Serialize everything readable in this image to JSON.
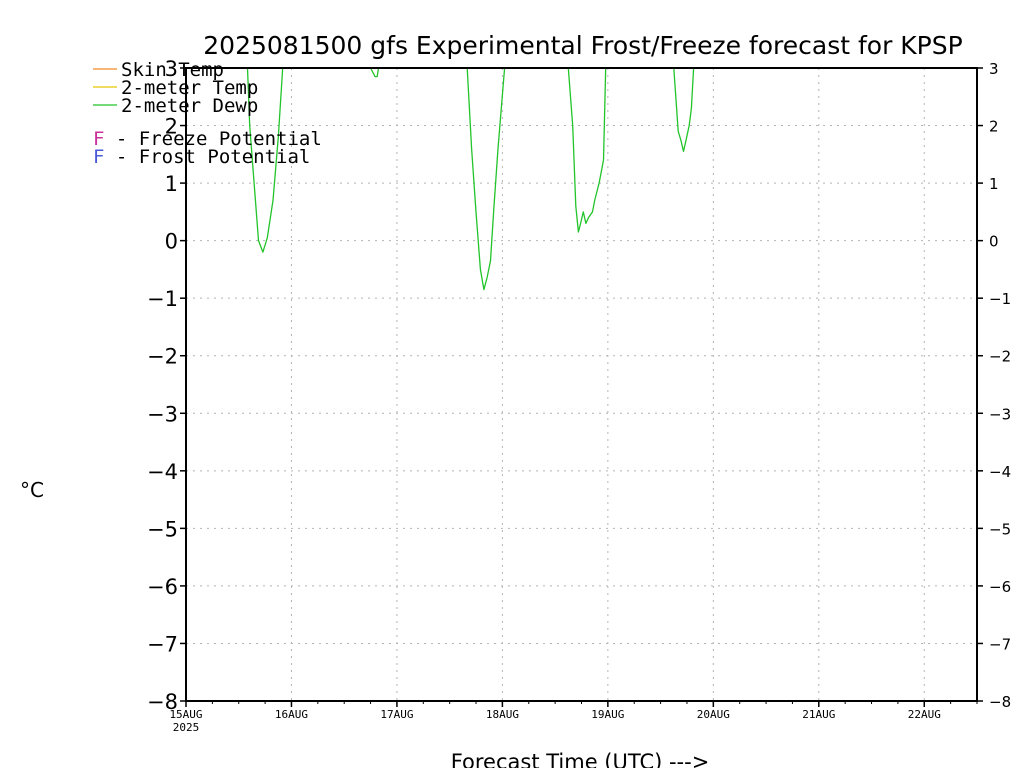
{
  "chart_data": {
    "type": "line",
    "title": "2025081500 gfs Experimental Frost/Freeze forecast for KPSP",
    "xlabel": "Forecast Time (UTC) --->",
    "ylabel_unit": "°C",
    "ylim": [
      -8,
      3
    ],
    "xlim_hours": [
      0,
      180
    ],
    "y_ticks": [
      "3",
      "2",
      "1",
      "0",
      "−1",
      "−2",
      "−3",
      "−4",
      "−5",
      "−6",
      "−7",
      "−8"
    ],
    "x_ticks": [
      {
        "label": "15AUG",
        "sub": "2025",
        "hour": 0
      },
      {
        "label": "16AUG",
        "sub": "",
        "hour": 24
      },
      {
        "label": "17AUG",
        "sub": "",
        "hour": 48
      },
      {
        "label": "18AUG",
        "sub": "",
        "hour": 72
      },
      {
        "label": "19AUG",
        "sub": "",
        "hour": 96
      },
      {
        "label": "20AUG",
        "sub": "",
        "hour": 120
      },
      {
        "label": "21AUG",
        "sub": "",
        "hour": 144
      },
      {
        "label": "22AUG",
        "sub": "",
        "hour": 168
      }
    ],
    "grid": true,
    "legend": {
      "placement": "top-left",
      "series_entries": [
        {
          "name": "Skin Temp",
          "color": "#f08a24"
        },
        {
          "name": "2-meter Temp",
          "color": "#e6c800"
        },
        {
          "name": "2-meter Dewp",
          "color": "#22c42a"
        }
      ],
      "potential_entries": [
        {
          "letter": "F",
          "text": " - Freeze Potential",
          "color": "#c8309a"
        },
        {
          "letter": "F",
          "text": " - Frost Potential",
          "color": "#4a5ad8"
        }
      ]
    },
    "series": [
      {
        "name": "2-meter Dewp",
        "color": "#22c42a",
        "segments": [
          [
            [
              14,
              3.0
            ],
            [
              14.5,
              2.0
            ],
            [
              15.5,
              1.0
            ],
            [
              16.5,
              0.0
            ],
            [
              17.5,
              -0.2
            ],
            [
              18.5,
              0.05
            ],
            [
              19.8,
              0.7
            ],
            [
              21,
              1.8
            ],
            [
              22,
              3.0
            ]
          ],
          [
            [
              42,
              3.0
            ],
            [
              43,
              2.85
            ],
            [
              43.5,
              2.85
            ],
            [
              43.8,
              3.0
            ]
          ],
          [
            [
              64,
              3.0
            ],
            [
              65,
              1.6
            ],
            [
              66,
              0.5
            ],
            [
              67,
              -0.5
            ],
            [
              67.8,
              -0.85
            ],
            [
              68.5,
              -0.65
            ],
            [
              69.3,
              -0.35
            ],
            [
              70,
              0.5
            ],
            [
              71,
              1.6
            ],
            [
              72.5,
              3.0
            ]
          ],
          [
            [
              87,
              3.0
            ],
            [
              88,
              2.0
            ],
            [
              88.7,
              0.6
            ],
            [
              89.3,
              0.15
            ],
            [
              89.8,
              0.3
            ],
            [
              90.4,
              0.5
            ],
            [
              91,
              0.3
            ],
            [
              91.6,
              0.4
            ],
            [
              92.5,
              0.5
            ],
            [
              93,
              0.7
            ],
            [
              94,
              1.0
            ],
            [
              95,
              1.4
            ],
            [
              95.5,
              3.0
            ]
          ],
          [
            [
              111,
              3.0
            ],
            [
              112,
              1.9
            ],
            [
              112.6,
              1.75
            ],
            [
              113.2,
              1.55
            ],
            [
              113.8,
              1.75
            ],
            [
              114.5,
              2.0
            ],
            [
              115,
              2.3
            ],
            [
              115.5,
              3.0
            ]
          ]
        ]
      }
    ]
  }
}
